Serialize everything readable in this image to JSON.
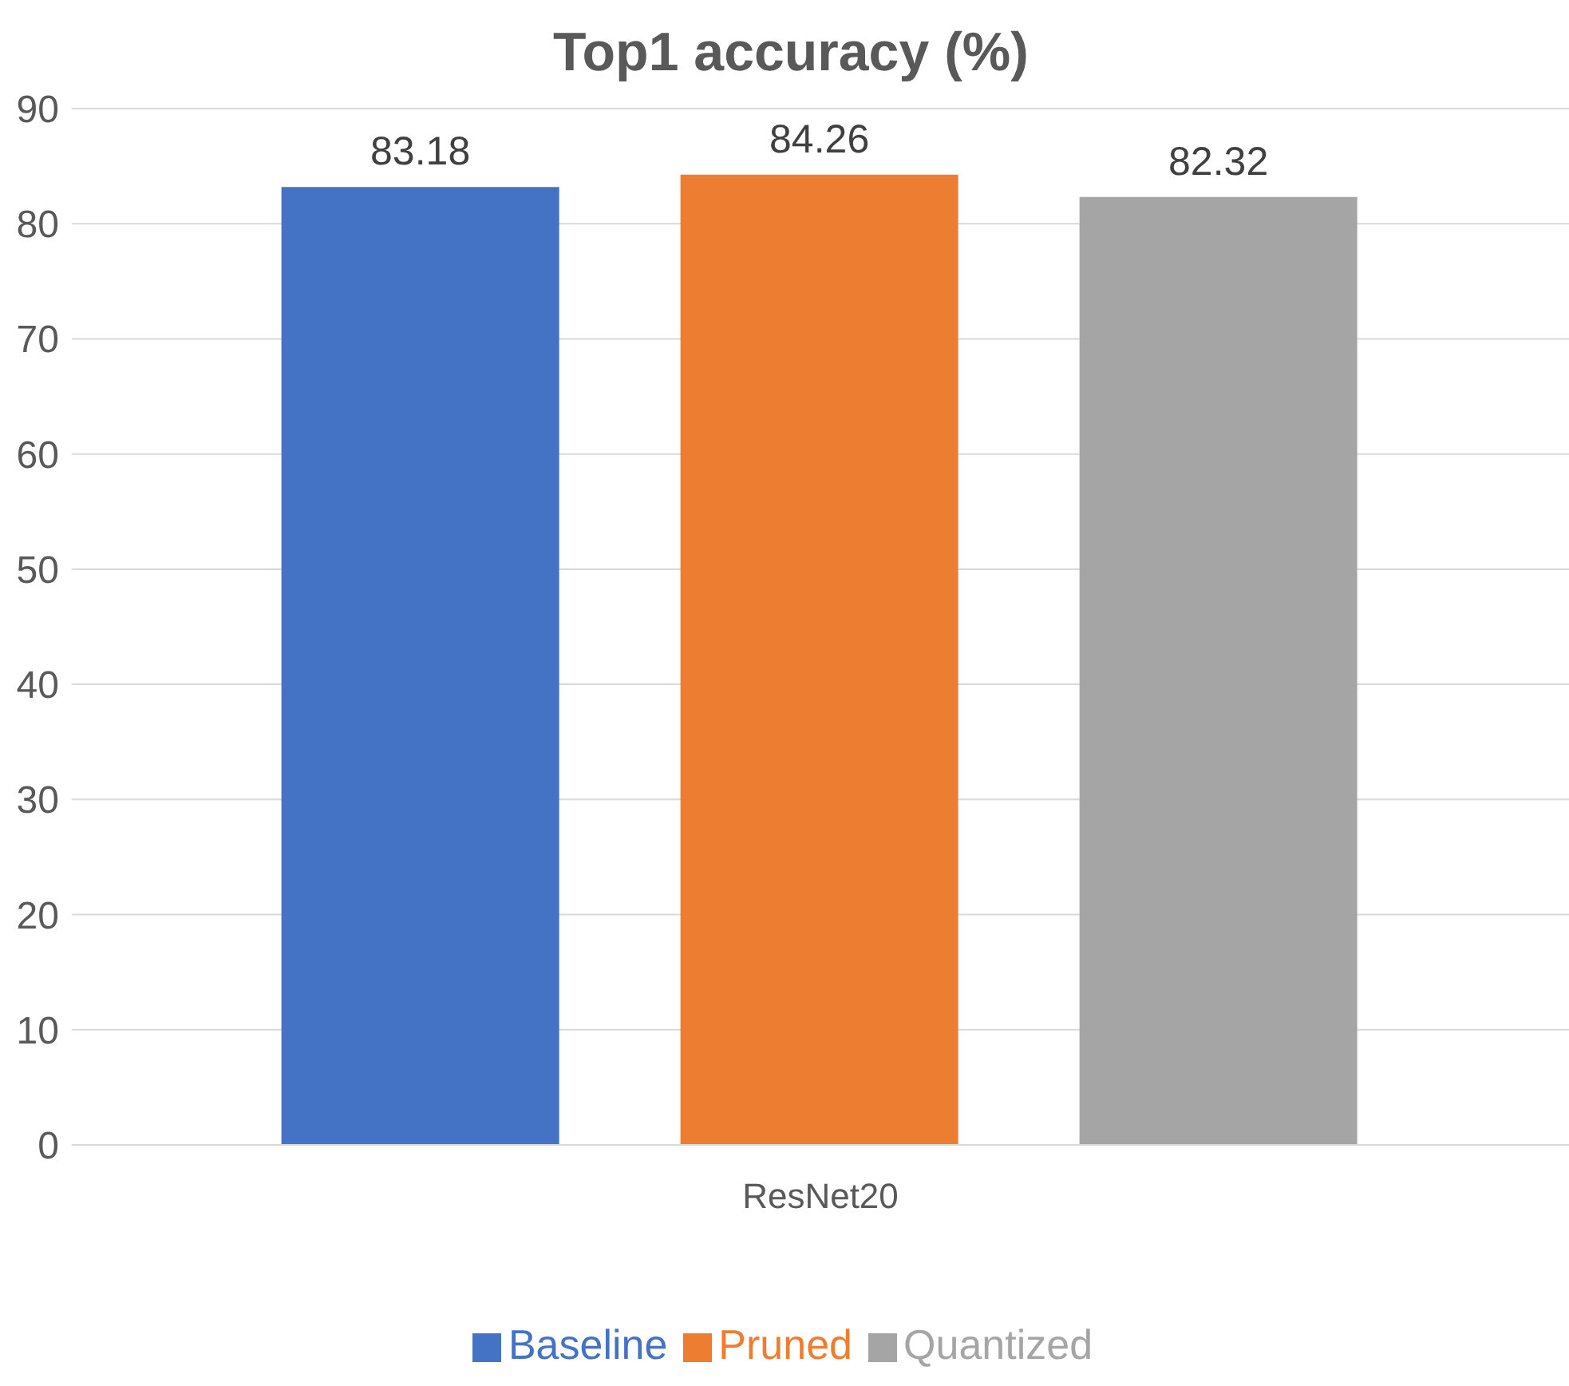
{
  "chart_data": {
    "type": "bar",
    "title": "Top1 accuracy (%)",
    "categories": [
      "ResNet20"
    ],
    "series": [
      {
        "name": "Baseline",
        "color": "#4472c4",
        "values": [
          83.18
        ]
      },
      {
        "name": "Pruned",
        "color": "#ed7d31",
        "values": [
          84.26
        ]
      },
      {
        "name": "Quantized",
        "color": "#a5a5a5",
        "values": [
          82.32
        ]
      }
    ],
    "ylim": [
      0,
      90
    ],
    "yticks": [
      0,
      10,
      20,
      30,
      40,
      50,
      60,
      70,
      80,
      90
    ],
    "grid": "y",
    "legend": "bottom",
    "data_labels": true
  }
}
